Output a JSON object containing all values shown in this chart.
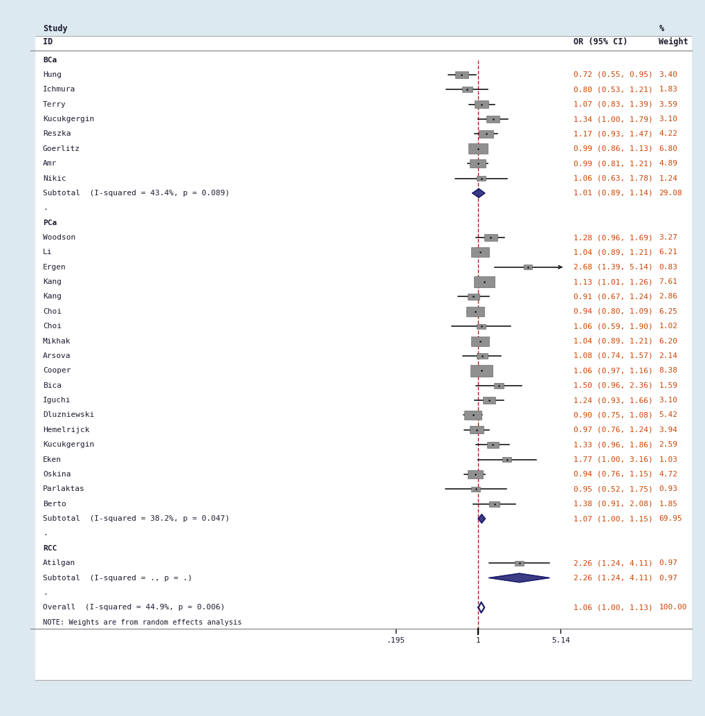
{
  "bg_color": "#dce9f0",
  "plot_bg": "#ffffff",
  "x_min": 0.195,
  "x_max": 5.14,
  "x_tick_labels": [
    ".195",
    "1",
    "5.14"
  ],
  "groups": [
    {
      "label": "BCa",
      "studies": [
        {
          "name": "Hung",
          "or": 0.72,
          "ci_lo": 0.55,
          "ci_hi": 0.95,
          "weight": 3.4,
          "arrow": false
        },
        {
          "name": "Ichmura",
          "or": 0.8,
          "ci_lo": 0.53,
          "ci_hi": 1.21,
          "weight": 1.83,
          "arrow": false
        },
        {
          "name": "Terry",
          "or": 1.07,
          "ci_lo": 0.83,
          "ci_hi": 1.39,
          "weight": 3.59,
          "arrow": false
        },
        {
          "name": "Kucukgergin",
          "or": 1.34,
          "ci_lo": 1.0,
          "ci_hi": 1.79,
          "weight": 3.1,
          "arrow": false
        },
        {
          "name": "Reszka",
          "or": 1.17,
          "ci_lo": 0.93,
          "ci_hi": 1.47,
          "weight": 4.22,
          "arrow": false
        },
        {
          "name": "Goerlitz",
          "or": 0.99,
          "ci_lo": 0.86,
          "ci_hi": 1.13,
          "weight": 6.8,
          "arrow": false
        },
        {
          "name": "Amr",
          "or": 0.99,
          "ci_lo": 0.81,
          "ci_hi": 1.21,
          "weight": 4.89,
          "arrow": false
        },
        {
          "name": "Nikic",
          "or": 1.06,
          "ci_lo": 0.63,
          "ci_hi": 1.78,
          "weight": 1.24,
          "arrow": false
        }
      ],
      "subtotal": {
        "or": 1.01,
        "ci_lo": 0.89,
        "ci_hi": 1.14,
        "weight": 29.08,
        "i2": "43.4%",
        "p": "0.089"
      }
    },
    {
      "label": "PCa",
      "studies": [
        {
          "name": "Woodson",
          "or": 1.28,
          "ci_lo": 0.96,
          "ci_hi": 1.69,
          "weight": 3.27,
          "arrow": false
        },
        {
          "name": "Li",
          "or": 1.04,
          "ci_lo": 0.89,
          "ci_hi": 1.21,
          "weight": 6.21,
          "arrow": false
        },
        {
          "name": "Ergen",
          "or": 2.68,
          "ci_lo": 1.39,
          "ci_hi": 5.14,
          "weight": 0.83,
          "arrow": true
        },
        {
          "name": "Kang",
          "or": 1.13,
          "ci_lo": 1.01,
          "ci_hi": 1.26,
          "weight": 7.61,
          "arrow": false
        },
        {
          "name": "Kang",
          "or": 0.91,
          "ci_lo": 0.67,
          "ci_hi": 1.24,
          "weight": 2.86,
          "arrow": false
        },
        {
          "name": "Choi",
          "or": 0.94,
          "ci_lo": 0.8,
          "ci_hi": 1.09,
          "weight": 6.25,
          "arrow": false
        },
        {
          "name": "Choi",
          "or": 1.06,
          "ci_lo": 0.59,
          "ci_hi": 1.9,
          "weight": 1.02,
          "arrow": false
        },
        {
          "name": "Mikhak",
          "or": 1.04,
          "ci_lo": 0.89,
          "ci_hi": 1.21,
          "weight": 6.2,
          "arrow": false
        },
        {
          "name": "Arsova",
          "or": 1.08,
          "ci_lo": 0.74,
          "ci_hi": 1.57,
          "weight": 2.14,
          "arrow": false
        },
        {
          "name": "Cooper",
          "or": 1.06,
          "ci_lo": 0.97,
          "ci_hi": 1.16,
          "weight": 8.38,
          "arrow": false
        },
        {
          "name": "Bica",
          "or": 1.5,
          "ci_lo": 0.96,
          "ci_hi": 2.36,
          "weight": 1.59,
          "arrow": false
        },
        {
          "name": "Iguchi",
          "or": 1.24,
          "ci_lo": 0.93,
          "ci_hi": 1.66,
          "weight": 3.1,
          "arrow": false
        },
        {
          "name": "Dluzniewski",
          "or": 0.9,
          "ci_lo": 0.75,
          "ci_hi": 1.08,
          "weight": 5.42,
          "arrow": false
        },
        {
          "name": "Hemelrijck",
          "or": 0.97,
          "ci_lo": 0.76,
          "ci_hi": 1.24,
          "weight": 3.94,
          "arrow": false
        },
        {
          "name": "Kucukgergin",
          "or": 1.33,
          "ci_lo": 0.96,
          "ci_hi": 1.86,
          "weight": 2.59,
          "arrow": false
        },
        {
          "name": "Eken",
          "or": 1.77,
          "ci_lo": 1.0,
          "ci_hi": 3.16,
          "weight": 1.03,
          "arrow": false
        },
        {
          "name": "Oskina",
          "or": 0.94,
          "ci_lo": 0.76,
          "ci_hi": 1.15,
          "weight": 4.72,
          "arrow": false
        },
        {
          "name": "Parlaktas",
          "or": 0.95,
          "ci_lo": 0.52,
          "ci_hi": 1.75,
          "weight": 0.93,
          "arrow": false
        },
        {
          "name": "Berto",
          "or": 1.38,
          "ci_lo": 0.91,
          "ci_hi": 2.08,
          "weight": 1.85,
          "arrow": false
        }
      ],
      "subtotal": {
        "or": 1.07,
        "ci_lo": 1.0,
        "ci_hi": 1.15,
        "weight": 69.95,
        "i2": "38.2%",
        "p": "0.047"
      }
    },
    {
      "label": "RCC",
      "studies": [
        {
          "name": "Atilgan",
          "or": 2.26,
          "ci_lo": 1.24,
          "ci_hi": 4.11,
          "weight": 0.97,
          "arrow": false
        }
      ],
      "subtotal": {
        "or": 2.26,
        "ci_lo": 1.24,
        "ci_hi": 4.11,
        "weight": 0.97,
        "i2": ".",
        "p": "."
      }
    }
  ],
  "overall": {
    "or": 1.06,
    "ci_lo": 1.0,
    "ci_hi": 1.13,
    "weight": 100.0,
    "i2": "44.9%",
    "p": "0.006"
  },
  "note": "NOTE: Weights are from random effects analysis",
  "text_color": "#1a1a2e",
  "or_color": "#cc4400",
  "diamond_color": "#1a1a6e",
  "ci_line_color": "#000000",
  "square_color": "#909090",
  "dashed_color": "#aa2222",
  "max_weight": 8.38
}
